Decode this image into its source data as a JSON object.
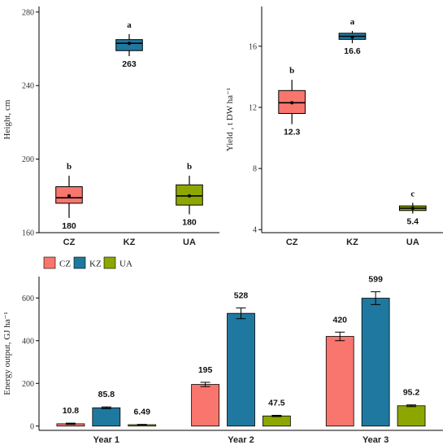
{
  "colors": {
    "CZ": "#F8766D",
    "KZ": "#1F78A0",
    "UA": "#8EA600"
  },
  "legend": [
    "CZ",
    "KZ",
    "UA"
  ],
  "chart_data": [
    {
      "type": "box",
      "ylabel": "Height, cm",
      "ylim": [
        160,
        283
      ],
      "yticks": [
        160,
        200,
        240,
        280
      ],
      "categories": [
        "CZ",
        "KZ",
        "UA"
      ],
      "boxes": [
        {
          "name": "CZ",
          "min": 168,
          "q1": 176,
          "median": 179,
          "q3": 185,
          "max": 191,
          "mean": 180,
          "label": "180",
          "letter": "b"
        },
        {
          "name": "KZ",
          "min": 256,
          "q1": 259,
          "median": 263,
          "q3": 265,
          "max": 268,
          "mean": 263,
          "label": "263",
          "letter": "a"
        },
        {
          "name": "UA",
          "min": 170,
          "q1": 175,
          "median": 180,
          "q3": 186,
          "max": 191,
          "mean": 180,
          "label": "180",
          "letter": "b"
        }
      ]
    },
    {
      "type": "box",
      "ylabel": "Yield , t DW ha⁻¹",
      "ylim": [
        3.8,
        18.6
      ],
      "yticks": [
        4,
        8,
        12,
        16
      ],
      "categories": [
        "CZ",
        "KZ",
        "UA"
      ],
      "boxes": [
        {
          "name": "CZ",
          "min": 10.9,
          "q1": 11.6,
          "median": 12.3,
          "q3": 13.1,
          "max": 13.8,
          "mean": 12.3,
          "label": "12.3",
          "letter": "b"
        },
        {
          "name": "KZ",
          "min": 16.2,
          "q1": 16.45,
          "median": 16.65,
          "q3": 16.85,
          "max": 17.0,
          "mean": 16.6,
          "label": "16.6",
          "letter": "a"
        },
        {
          "name": "UA",
          "min": 5.05,
          "q1": 5.25,
          "median": 5.4,
          "q3": 5.55,
          "max": 5.75,
          "mean": 5.4,
          "label": "5.4",
          "letter": "c"
        }
      ]
    },
    {
      "type": "bar",
      "ylabel": "Energy output, GJ ha⁻¹",
      "ylim": [
        -20,
        700
      ],
      "yticks": [
        0,
        200,
        400,
        600
      ],
      "categories": [
        "Year 1",
        "Year 2",
        "Year 3"
      ],
      "series": [
        {
          "name": "CZ",
          "values": [
            10.8,
            195,
            420
          ],
          "errors": [
            3,
            10,
            20
          ],
          "labels": [
            "10.8",
            "195",
            "420"
          ]
        },
        {
          "name": "KZ",
          "values": [
            85.8,
            528,
            599
          ],
          "errors": [
            4,
            25,
            30
          ],
          "labels": [
            "85.8",
            "528",
            "599"
          ]
        },
        {
          "name": "UA",
          "values": [
            6.49,
            47.5,
            95.2
          ],
          "errors": [
            1.5,
            3,
            4
          ],
          "labels": [
            "6.49",
            "47.5",
            "95.2"
          ]
        }
      ]
    }
  ]
}
